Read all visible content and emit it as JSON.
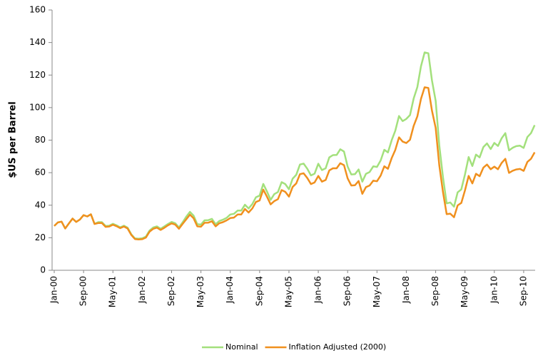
{
  "chart_data": {
    "type": "line",
    "y_label": "$US per Barrel",
    "ylim": [
      0,
      160
    ],
    "yticks": [
      0,
      20,
      40,
      60,
      80,
      100,
      120,
      140,
      160
    ],
    "grid": false,
    "legend": "bottom",
    "categories": [
      "Jan-00",
      null,
      null,
      null,
      null,
      null,
      null,
      null,
      "Sep-00",
      null,
      null,
      null,
      null,
      null,
      null,
      null,
      "May-01",
      null,
      null,
      null,
      null,
      null,
      null,
      null,
      "Jan-02",
      null,
      null,
      null,
      null,
      null,
      null,
      null,
      "Sep-02",
      null,
      null,
      null,
      null,
      null,
      null,
      null,
      "May-03",
      null,
      null,
      null,
      null,
      null,
      null,
      null,
      "Jan-04",
      null,
      null,
      null,
      null,
      null,
      null,
      null,
      "Sep-04",
      null,
      null,
      null,
      null,
      null,
      null,
      null,
      "May-05",
      null,
      null,
      null,
      null,
      null,
      null,
      null,
      "Jan-06",
      null,
      null,
      null,
      null,
      null,
      null,
      null,
      "Sep-06",
      null,
      null,
      null,
      null,
      null,
      null,
      null,
      "May-07",
      null,
      null,
      null,
      null,
      null,
      null,
      null,
      "Jan-08",
      null,
      null,
      null,
      null,
      null,
      null,
      null,
      "Sep-08",
      null,
      null,
      null,
      null,
      null,
      null,
      null,
      "May-09",
      null,
      null,
      null,
      null,
      null,
      null,
      null,
      "Jan-10",
      null,
      null,
      null,
      null,
      null,
      null,
      null,
      "Sep-10",
      null,
      null,
      null
    ],
    "series": [
      {
        "name": "Nominal",
        "color": "#a3e07c",
        "values": [
          27.2,
          29.4,
          29.9,
          25.7,
          28.8,
          31.8,
          29.7,
          31.2,
          33.9,
          33.1,
          34.4,
          28.5,
          29.6,
          29.6,
          27.2,
          27.4,
          28.6,
          27.6,
          26.4,
          27.4,
          26.2,
          22.2,
          19.6,
          19.4,
          19.7,
          20.7,
          24.4,
          26.3,
          27.0,
          25.5,
          26.9,
          28.4,
          29.7,
          28.9,
          26.3,
          29.4,
          32.9,
          35.9,
          33.6,
          28.3,
          28.1,
          30.7,
          30.8,
          31.6,
          28.3,
          30.3,
          31.1,
          32.2,
          34.3,
          34.7,
          36.7,
          36.7,
          40.3,
          38.0,
          40.7,
          44.9,
          45.9,
          53.1,
          48.5,
          43.3,
          46.8,
          48.1,
          54.2,
          53.0,
          49.8,
          56.3,
          58.7,
          65.0,
          65.6,
          62.4,
          58.3,
          59.4,
          65.5,
          61.6,
          62.7,
          69.4,
          70.8,
          70.9,
          74.4,
          73.0,
          63.8,
          58.9,
          59.1,
          62.0,
          54.5,
          59.3,
          60.4,
          63.9,
          63.5,
          67.5,
          74.1,
          72.4,
          79.9,
          85.8,
          94.8,
          91.7,
          93.0,
          95.4,
          105.5,
          112.6,
          125.4,
          133.9,
          133.4,
          116.7,
          104.1,
          76.6,
          57.3,
          41.1,
          41.7,
          39.1,
          47.9,
          49.7,
          59.0,
          69.6,
          64.1,
          71.1,
          69.4,
          75.7,
          78.0,
          74.5,
          78.3,
          76.4,
          81.2,
          84.3,
          73.7,
          75.3,
          76.3,
          76.6,
          75.2,
          81.9,
          84.3,
          89.2
        ]
      },
      {
        "name": "Inflation Adjusted (2000)",
        "color": "#f0901e",
        "values": [
          27.2,
          29.4,
          29.9,
          25.7,
          28.8,
          31.8,
          29.7,
          31.2,
          33.9,
          33.1,
          34.4,
          28.5,
          29.0,
          29.0,
          26.7,
          26.9,
          28.0,
          27.1,
          25.9,
          26.9,
          25.7,
          21.8,
          19.2,
          19.0,
          19.1,
          20.1,
          23.7,
          25.5,
          26.2,
          24.8,
          26.1,
          27.6,
          28.8,
          28.1,
          25.5,
          28.5,
          31.3,
          34.2,
          32.0,
          27.0,
          26.8,
          29.2,
          29.3,
          30.1,
          27.0,
          28.9,
          29.6,
          30.7,
          32.1,
          32.4,
          34.3,
          34.3,
          37.7,
          35.5,
          38.0,
          42.0,
          42.9,
          49.6,
          45.3,
          40.5,
          42.5,
          43.7,
          49.3,
          48.2,
          45.3,
          51.2,
          53.4,
          59.1,
          59.6,
          56.7,
          53.0,
          54.0,
          58.0,
          54.5,
          55.5,
          61.4,
          62.7,
          62.7,
          65.8,
          64.6,
          56.5,
          52.1,
          52.3,
          54.9,
          47.0,
          51.1,
          52.1,
          55.1,
          54.7,
          58.2,
          63.9,
          62.4,
          68.9,
          74.0,
          81.7,
          79.1,
          78.2,
          80.2,
          88.7,
          94.6,
          105.4,
          112.5,
          112.1,
          98.1,
          87.5,
          64.4,
          48.2,
          34.5,
          34.8,
          32.6,
          39.9,
          41.4,
          49.2,
          58.0,
          53.4,
          59.3,
          57.8,
          63.1,
          65.0,
          62.1,
          63.7,
          62.1,
          66.0,
          68.5,
          59.9,
          61.2,
          62.0,
          62.3,
          61.1,
          66.6,
          68.5,
          72.5
        ]
      }
    ]
  }
}
